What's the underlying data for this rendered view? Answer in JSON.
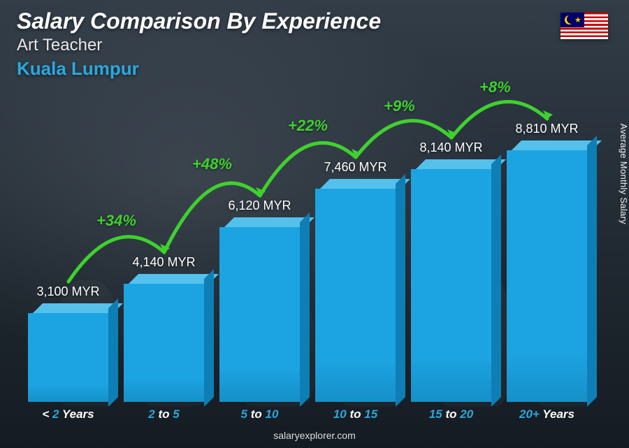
{
  "header": {
    "title": "Salary Comparison By Experience",
    "subtitle": "Art Teacher",
    "location": "Kuala Lumpur",
    "location_color": "#29a9e0"
  },
  "flag": {
    "country": "Malaysia"
  },
  "side_label": "Average Monthly Salary",
  "footer": "salaryexplorer.com",
  "chart": {
    "type": "bar",
    "currency": "MYR",
    "bar_color_front": "#1ca4e2",
    "bar_color_top": "#54c1ec",
    "bar_color_side": "#0d7fb5",
    "accent_color": "#29a9e0",
    "increase_color": "#3fd12e",
    "text_color": "#ffffff",
    "background_color": "#2a3540",
    "value_fontsize": 18,
    "increase_fontsize": 22,
    "xlabel_fontsize": 17,
    "ymax": 8810,
    "bars": [
      {
        "category_prefix": "<",
        "category_num": "2",
        "category_unit": "Years",
        "value": 3100,
        "value_label": "3,100 MYR"
      },
      {
        "category_prefix": "",
        "category_num": "2",
        "category_mid": " to ",
        "category_num2": "5",
        "value": 4140,
        "value_label": "4,140 MYR"
      },
      {
        "category_prefix": "",
        "category_num": "5",
        "category_mid": " to ",
        "category_num2": "10",
        "value": 6120,
        "value_label": "6,120 MYR"
      },
      {
        "category_prefix": "",
        "category_num": "10",
        "category_mid": " to ",
        "category_num2": "15",
        "value": 7460,
        "value_label": "7,460 MYR"
      },
      {
        "category_prefix": "",
        "category_num": "15",
        "category_mid": " to ",
        "category_num2": "20",
        "value": 8140,
        "value_label": "8,140 MYR"
      },
      {
        "category_prefix": "",
        "category_num": "20+",
        "category_unit": "Years",
        "value": 8810,
        "value_label": "8,810 MYR"
      }
    ],
    "increases": [
      {
        "label": "+34%",
        "from": 0,
        "to": 1
      },
      {
        "label": "+48%",
        "from": 1,
        "to": 2
      },
      {
        "label": "+22%",
        "from": 2,
        "to": 3
      },
      {
        "label": "+9%",
        "from": 3,
        "to": 4
      },
      {
        "label": "+8%",
        "from": 4,
        "to": 5
      }
    ]
  }
}
